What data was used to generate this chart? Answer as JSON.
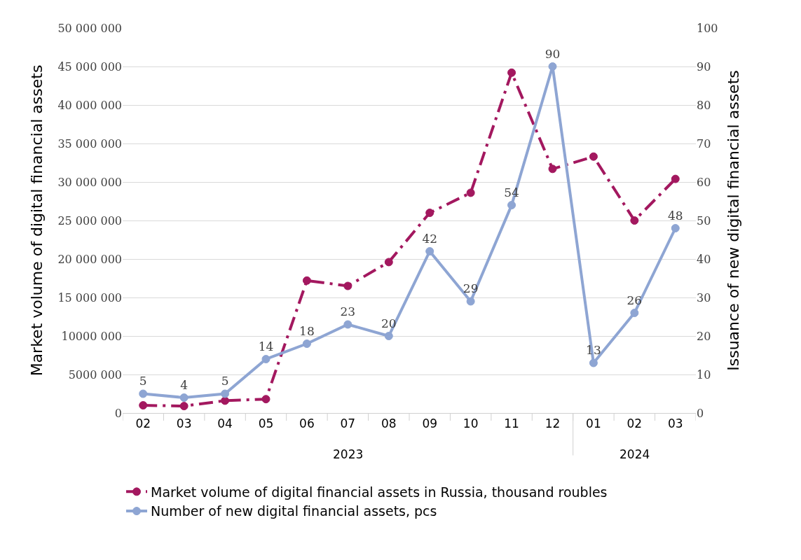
{
  "chart_data": {
    "type": "line",
    "ylabel": "Market volume of digital financial assets",
    "y2label": "Issuance of new digital financial assets",
    "categories": [
      "02",
      "03",
      "04",
      "05",
      "06",
      "07",
      "08",
      "09",
      "10",
      "11",
      "12",
      "01",
      "02",
      "03"
    ],
    "annotations": [
      "2023",
      "2024"
    ],
    "series": [
      {
        "name": "Market volume of digital financial assets in Russia, thousand roubles",
        "color": "#a3185f",
        "line_style": "dashed",
        "values": [
          1000000,
          900000,
          1600000,
          1800000,
          17200000,
          16500000,
          19600000,
          26000000,
          28600000,
          44200000,
          31700000,
          33300000,
          25000000,
          30400000
        ]
      },
      {
        "name": "Number of new digital financial assets, pcs",
        "color": "#8ea5d3",
        "axis": "y2",
        "line_style": "solid",
        "data_labels": true,
        "values": [
          5,
          4,
          5,
          14,
          18,
          23,
          20,
          42,
          29,
          54,
          90,
          13,
          26,
          48
        ]
      }
    ],
    "ylim": [
      0,
      50000000
    ],
    "yticks": [
      0,
      {
        "value": 5000000,
        "label": "5000 000"
      },
      {
        "value": 10000000,
        "label": "10000 000"
      },
      {
        "value": 15000000,
        "label": "15 000 000"
      },
      {
        "value": 20000000,
        "label": "20 000 000"
      },
      {
        "value": 25000000,
        "label": "25 000 000"
      },
      {
        "value": 30000000,
        "label": "30 000 000"
      },
      {
        "value": 35000000,
        "label": "35 000 000"
      },
      {
        "value": 40000000,
        "label": "40 000 000"
      },
      {
        "value": 45000000,
        "label": "45 000 000"
      },
      {
        "value": 50000000,
        "label": "50 000 000"
      }
    ],
    "y2lim": [
      0,
      100
    ],
    "y2ticks": [
      0,
      10,
      20,
      30,
      40,
      50,
      60,
      70,
      80,
      90,
      100
    ],
    "grid": "y",
    "legend": "bottom",
    "marker": "circle"
  }
}
